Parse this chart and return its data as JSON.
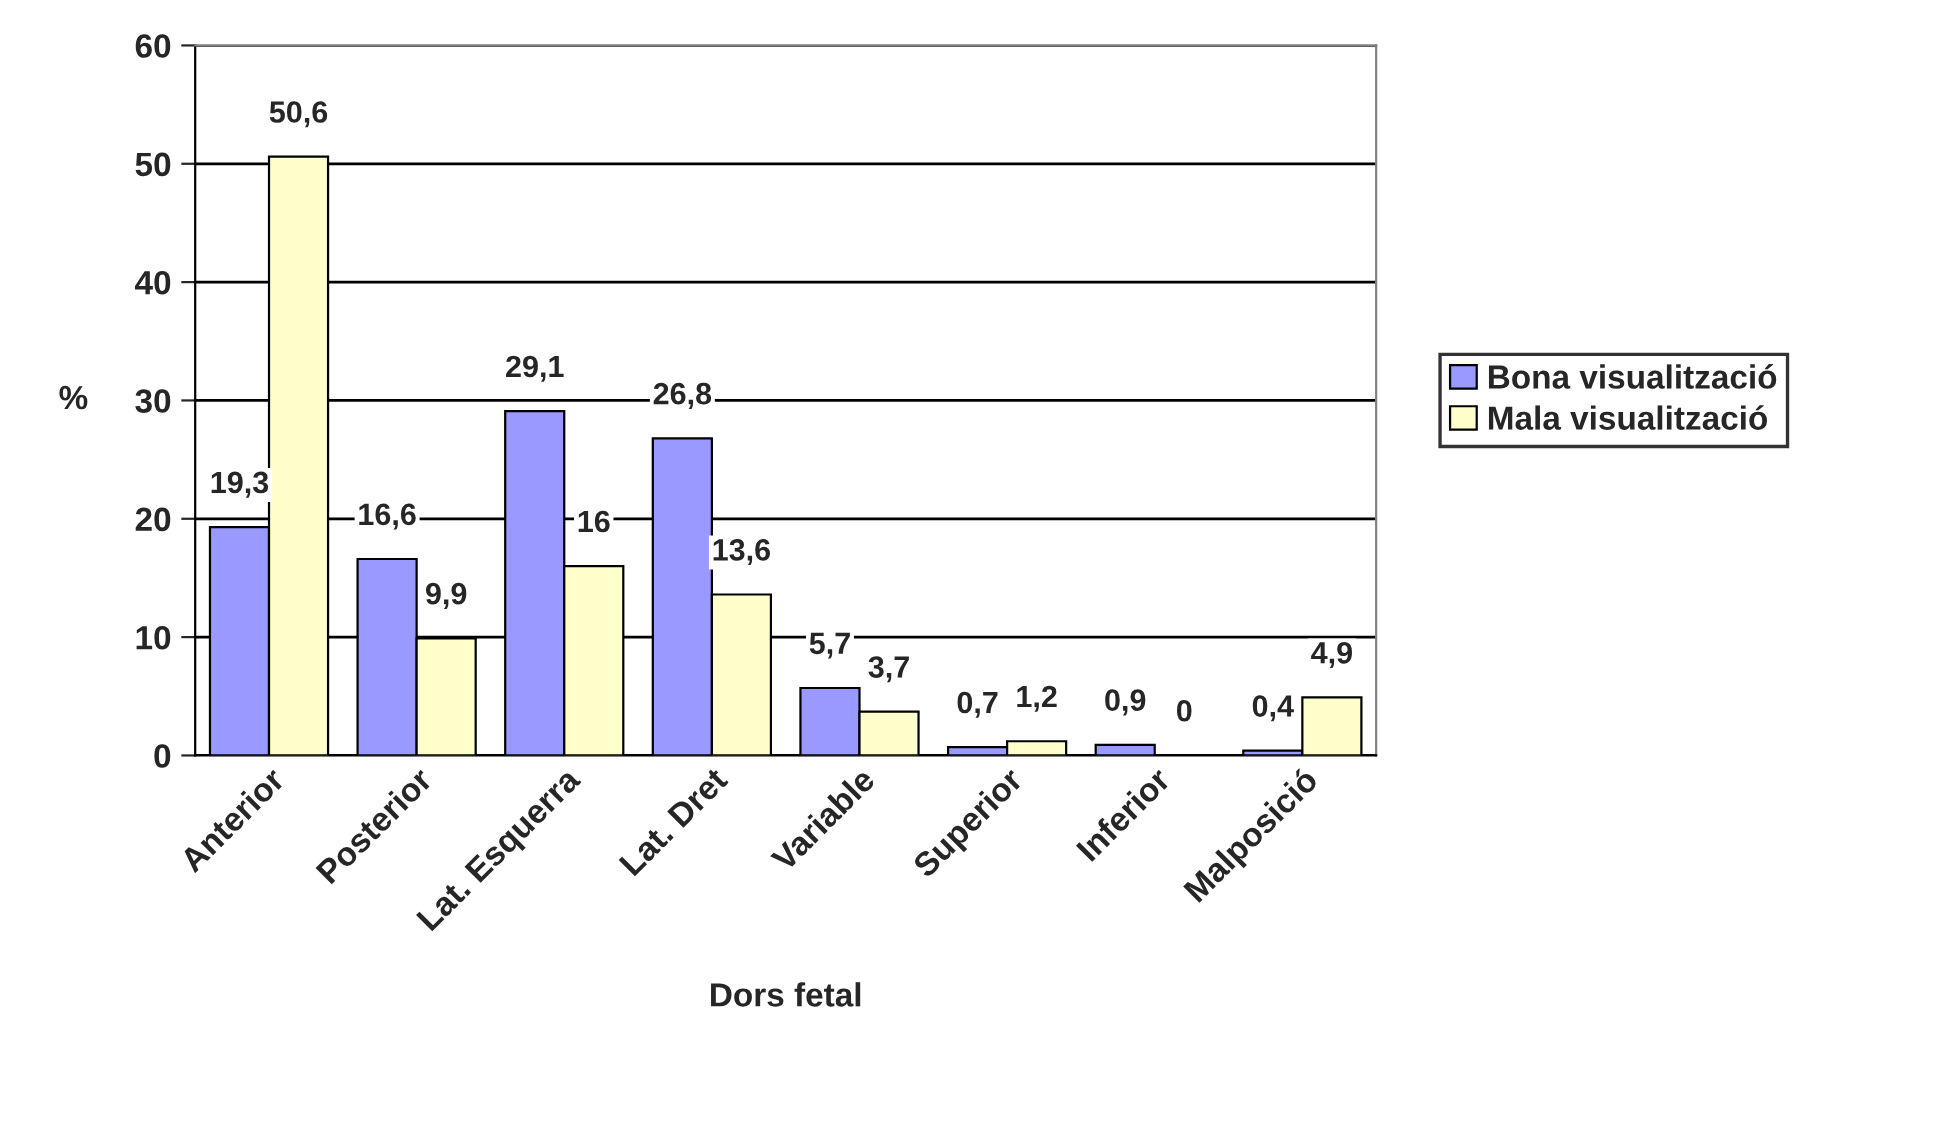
{
  "chart_data": {
    "type": "bar",
    "xlabel": "Dors fetal",
    "ylabel": "%",
    "categories": [
      "Anterior",
      "Posterior",
      "Lat. Esquerra",
      "Lat. Dret",
      "Variable",
      "Superior",
      "Inferior",
      "Malposició"
    ],
    "series": [
      {
        "name": "Bona visualització",
        "color": "#9999ff",
        "values": [
          19.3,
          16.6,
          29.1,
          26.8,
          5.7,
          0.7,
          0.9,
          0.4
        ],
        "value_labels": [
          "19,3",
          "16,6",
          "29,1",
          "26,8",
          "5,7",
          "0,7",
          "0,9",
          "0,4"
        ]
      },
      {
        "name": "Mala visualització",
        "color": "#ffffcc",
        "values": [
          50.6,
          9.9,
          16,
          13.6,
          3.7,
          1.2,
          0,
          4.9
        ],
        "value_labels": [
          "50,6",
          "9,9",
          "16",
          "13,6",
          "3,7",
          "1,2",
          "0",
          "4,9"
        ]
      }
    ],
    "ylim": [
      0,
      60
    ],
    "yticks": [
      0,
      10,
      20,
      30,
      40,
      50,
      60
    ],
    "grid": "y",
    "legend": "right"
  }
}
